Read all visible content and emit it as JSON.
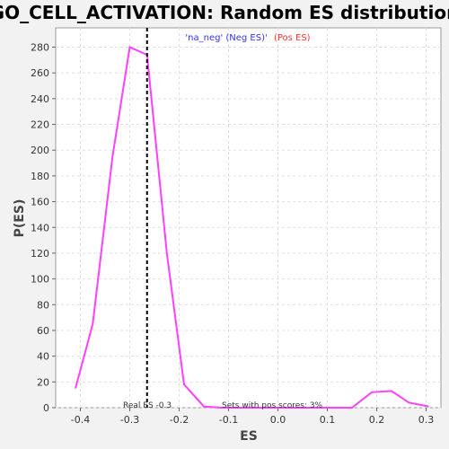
{
  "chart_data": {
    "type": "line",
    "title": "GO_CELL_ACTIVATION: Random ES distribution",
    "xlabel": "ES",
    "ylabel": "P(ES)",
    "xlim": [
      -0.45,
      0.33
    ],
    "ylim": [
      0,
      295
    ],
    "xticks": [
      -0.4,
      -0.3,
      -0.2,
      -0.1,
      0.0,
      0.1,
      0.2,
      0.3
    ],
    "xtick_labels": [
      "-0.4",
      "-0.3",
      "-0.2",
      "-0.1",
      "0.0",
      "0.1",
      "0.2",
      "0.3"
    ],
    "yticks": [
      0,
      20,
      40,
      60,
      80,
      100,
      120,
      140,
      160,
      180,
      200,
      220,
      240,
      260,
      280
    ],
    "ytick_labels": [
      "0",
      "20",
      "40",
      "60",
      "80",
      "100",
      "120",
      "140",
      "160",
      "180",
      "200",
      "220",
      "240",
      "260",
      "280"
    ],
    "grid": true,
    "series": [
      {
        "color": "#ff40ff",
        "x": [
          -0.41,
          -0.375,
          -0.335,
          -0.3,
          -0.265,
          -0.225,
          -0.19,
          -0.15,
          -0.115,
          -0.08,
          -0.04,
          0.0,
          0.04,
          0.08,
          0.15,
          0.19,
          0.23,
          0.265,
          0.305
        ],
        "y": [
          15,
          65,
          195,
          280,
          274,
          120,
          18,
          1,
          0,
          0,
          0,
          0,
          0,
          0,
          0,
          12,
          13,
          4,
          1
        ]
      }
    ],
    "real_es": -0.265,
    "legend": {
      "placement": "top-center",
      "neg_text": "'na_neg' (Neg ES)'",
      "pos_text": "(Pos ES)",
      "neg_color": "#3333ff",
      "pos_color": "#ff3333"
    },
    "annotations": {
      "real_es_text": "Real ES -0.3",
      "sets_text": "Sets with pos scores: 3%"
    }
  }
}
